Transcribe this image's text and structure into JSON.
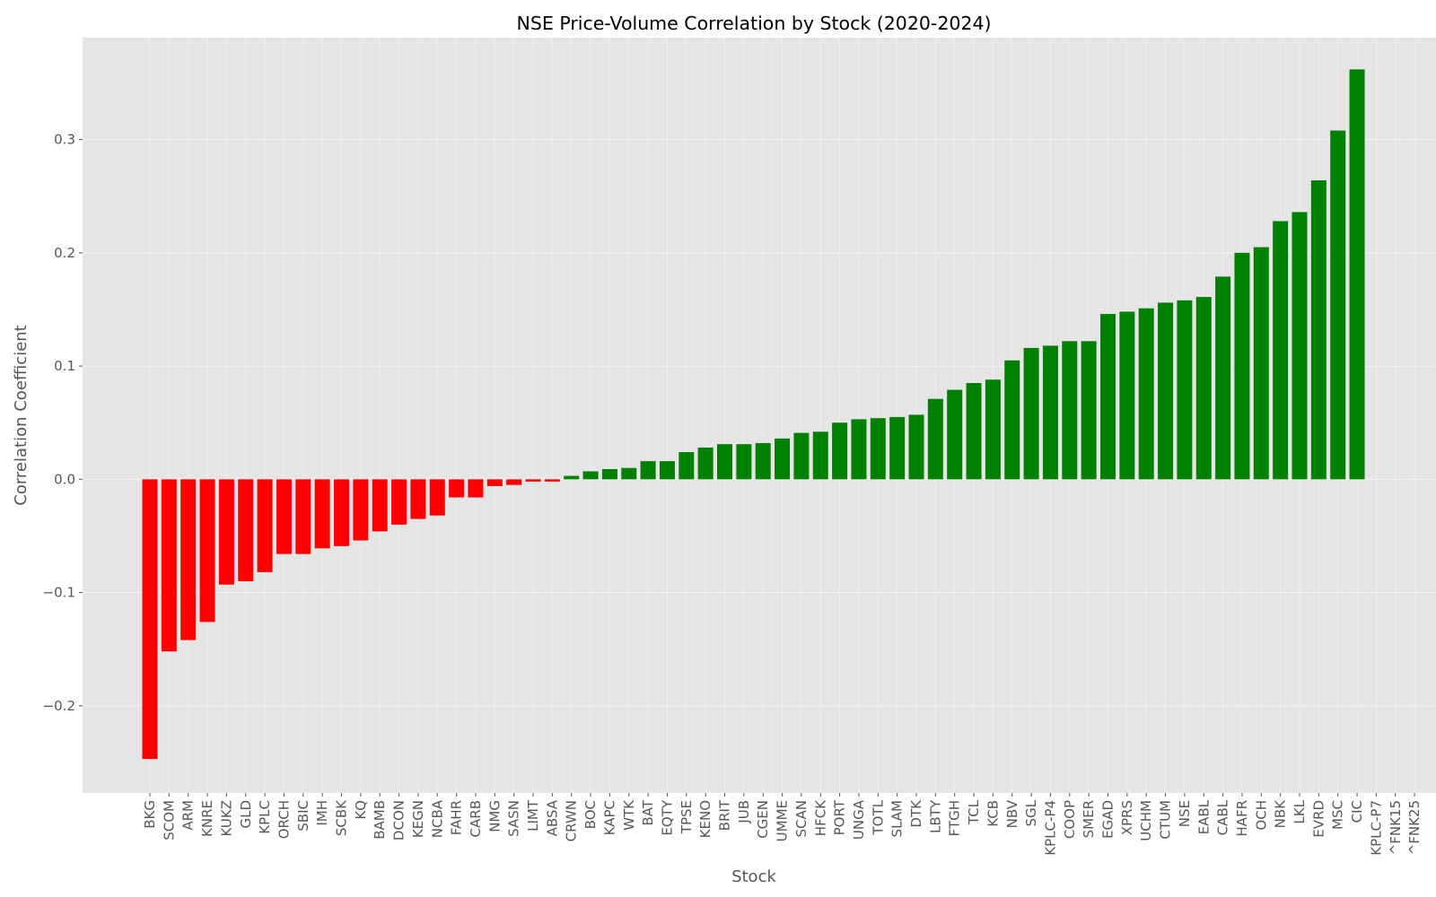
{
  "chart_data": {
    "type": "bar",
    "title": "NSE Price-Volume Correlation by Stock (2020-2024)",
    "xlabel": "Stock",
    "ylabel": "Correlation Coefficient",
    "ylim": [
      -0.277,
      0.39
    ],
    "yticks": [
      -0.2,
      -0.1,
      0.0,
      0.1,
      0.2,
      0.3
    ],
    "ytick_labels": [
      "−0.2",
      "−0.1",
      "0.0",
      "0.1",
      "0.2",
      "0.3"
    ],
    "grid": true,
    "legend": "none",
    "colors": {
      "negative": "#ff0000",
      "positive": "#008000",
      "background": "#e5e5e5",
      "grid": "#ffffff"
    },
    "categories": [
      "BKG",
      "SCOM",
      "ARM",
      "KNRE",
      "KUKZ",
      "GLD",
      "KPLC",
      "ORCH",
      "SBIC",
      "IMH",
      "SCBK",
      "KQ",
      "BAMB",
      "DCON",
      "KEGN",
      "NCBA",
      "FAHR",
      "CARB",
      "NMG",
      "SASN",
      "LIMT",
      "ABSA",
      "CRWN",
      "BOC",
      "KAPC",
      "WTK",
      "BAT",
      "EQTY",
      "TPSE",
      "KENO",
      "BRIT",
      "JUB",
      "CGEN",
      "UMME",
      "SCAN",
      "HFCK",
      "PORT",
      "UNGA",
      "TOTL",
      "SLAM",
      "DTK",
      "LBTY",
      "FTGH",
      "TCL",
      "KCB",
      "NBV",
      "SGL",
      "KPLC-P4",
      "COOP",
      "SMER",
      "EGAD",
      "XPRS",
      "UCHM",
      "CTUM",
      "NSE",
      "EABL",
      "CABL",
      "HAFR",
      "OCH",
      "NBK",
      "LKL",
      "EVRD",
      "MSC",
      "CIC",
      "KPLC-P7",
      "^FNK15",
      "^FNK25"
    ],
    "values": [
      -0.247,
      -0.152,
      -0.142,
      -0.126,
      -0.093,
      -0.09,
      -0.082,
      -0.066,
      -0.066,
      -0.061,
      -0.059,
      -0.054,
      -0.046,
      -0.04,
      -0.035,
      -0.032,
      -0.016,
      -0.016,
      -0.006,
      -0.005,
      -0.002,
      -0.002,
      0.003,
      0.007,
      0.009,
      0.01,
      0.016,
      0.016,
      0.024,
      0.028,
      0.031,
      0.031,
      0.032,
      0.036,
      0.041,
      0.042,
      0.05,
      0.053,
      0.054,
      0.055,
      0.057,
      0.071,
      0.079,
      0.085,
      0.088,
      0.105,
      0.116,
      0.118,
      0.122,
      0.122,
      0.146,
      0.148,
      0.151,
      0.156,
      0.158,
      0.161,
      0.179,
      0.2,
      0.205,
      0.228,
      0.236,
      0.264,
      0.308,
      0.362,
      null,
      null,
      null
    ]
  }
}
